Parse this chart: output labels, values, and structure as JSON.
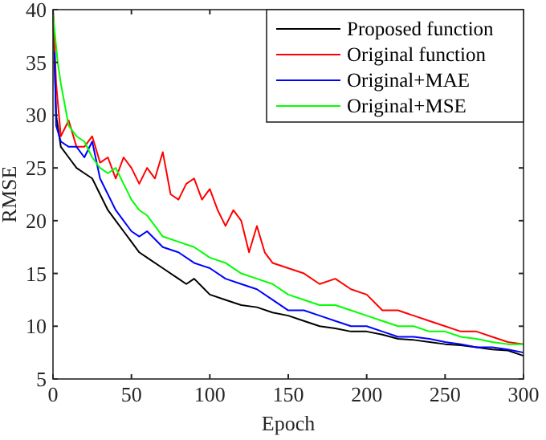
{
  "chart_data": {
    "type": "line",
    "xlabel": "Epoch",
    "ylabel": "RMSE",
    "xlim": [
      0,
      300
    ],
    "ylim": [
      5,
      40
    ],
    "xticks": [
      0,
      50,
      100,
      150,
      200,
      250,
      300
    ],
    "yticks": [
      5,
      10,
      15,
      20,
      25,
      30,
      35,
      40
    ],
    "grid": false,
    "legend": "top right",
    "marker": "none",
    "line_style": "solid",
    "series": [
      {
        "name": "Proposed function",
        "color": "#000000",
        "x": [
          0,
          2,
          5,
          10,
          15,
          20,
          25,
          30,
          35,
          40,
          45,
          50,
          55,
          60,
          70,
          80,
          85,
          90,
          100,
          110,
          120,
          130,
          140,
          150,
          160,
          170,
          180,
          190,
          200,
          210,
          220,
          230,
          240,
          250,
          260,
          270,
          280,
          290,
          300
        ],
        "values": [
          40,
          30,
          27,
          26,
          25,
          24.5,
          24,
          22.5,
          21,
          20,
          19,
          18,
          17,
          16.5,
          15.5,
          14.5,
          14,
          14.5,
          13,
          12.5,
          12,
          11.8,
          11.3,
          11,
          10.5,
          10,
          9.8,
          9.5,
          9.5,
          9.2,
          8.8,
          8.7,
          8.5,
          8.3,
          8.2,
          8,
          7.8,
          7.7,
          7.2
        ]
      },
      {
        "name": "Original function",
        "color": "#ff0000",
        "x": [
          0,
          2,
          5,
          10,
          15,
          20,
          25,
          30,
          35,
          40,
          45,
          50,
          55,
          60,
          65,
          70,
          75,
          80,
          85,
          90,
          95,
          100,
          105,
          110,
          115,
          120,
          125,
          130,
          135,
          140,
          150,
          160,
          170,
          180,
          190,
          200,
          210,
          220,
          230,
          240,
          250,
          260,
          270,
          280,
          290,
          300
        ],
        "values": [
          40,
          33,
          28,
          29.5,
          27,
          27,
          28,
          25.5,
          26,
          24,
          26,
          25,
          23.5,
          25,
          24,
          26.5,
          22.5,
          22,
          23.5,
          24,
          22,
          23,
          21,
          19.5,
          21,
          20,
          17,
          19.5,
          17,
          16,
          15.5,
          15,
          14,
          14.5,
          13.5,
          13,
          11.5,
          11.5,
          11,
          10.5,
          10,
          9.5,
          9.5,
          9,
          8.5,
          8.3
        ]
      },
      {
        "name": "Original+MAE",
        "color": "#0000ff",
        "x": [
          1,
          2,
          5,
          10,
          15,
          20,
          25,
          30,
          35,
          40,
          45,
          50,
          55,
          60,
          70,
          80,
          90,
          100,
          110,
          120,
          130,
          140,
          150,
          160,
          170,
          180,
          190,
          200,
          210,
          220,
          230,
          240,
          250,
          260,
          270,
          280,
          290,
          300
        ],
        "values": [
          36,
          29,
          27.5,
          27,
          27,
          26,
          27.5,
          24,
          22.5,
          21,
          20,
          19,
          18.5,
          19,
          17.5,
          17,
          16,
          15.5,
          14.5,
          14,
          13.5,
          12.5,
          11.5,
          11.5,
          11,
          10.5,
          10,
          10,
          9.5,
          9,
          9,
          8.8,
          8.5,
          8.3,
          8,
          8,
          7.8,
          7.5
        ]
      },
      {
        "name": "Original+MSE",
        "color": "#00ff00",
        "x": [
          0,
          3,
          5,
          10,
          15,
          20,
          25,
          30,
          35,
          40,
          45,
          50,
          55,
          60,
          65,
          70,
          80,
          90,
          100,
          110,
          120,
          130,
          140,
          150,
          160,
          170,
          180,
          190,
          200,
          210,
          220,
          230,
          240,
          250,
          260,
          270,
          280,
          290,
          300
        ],
        "values": [
          39.5,
          35,
          33,
          29,
          28,
          27.5,
          26,
          25,
          24.5,
          25,
          23.5,
          22,
          21,
          20.5,
          19.5,
          18.5,
          18,
          17.5,
          16.5,
          16,
          15,
          14.5,
          14,
          13,
          12.5,
          12,
          12,
          11.5,
          11,
          10.5,
          10,
          10,
          9.5,
          9.5,
          9,
          8.8,
          8.5,
          8.3,
          8.3
        ]
      }
    ]
  }
}
